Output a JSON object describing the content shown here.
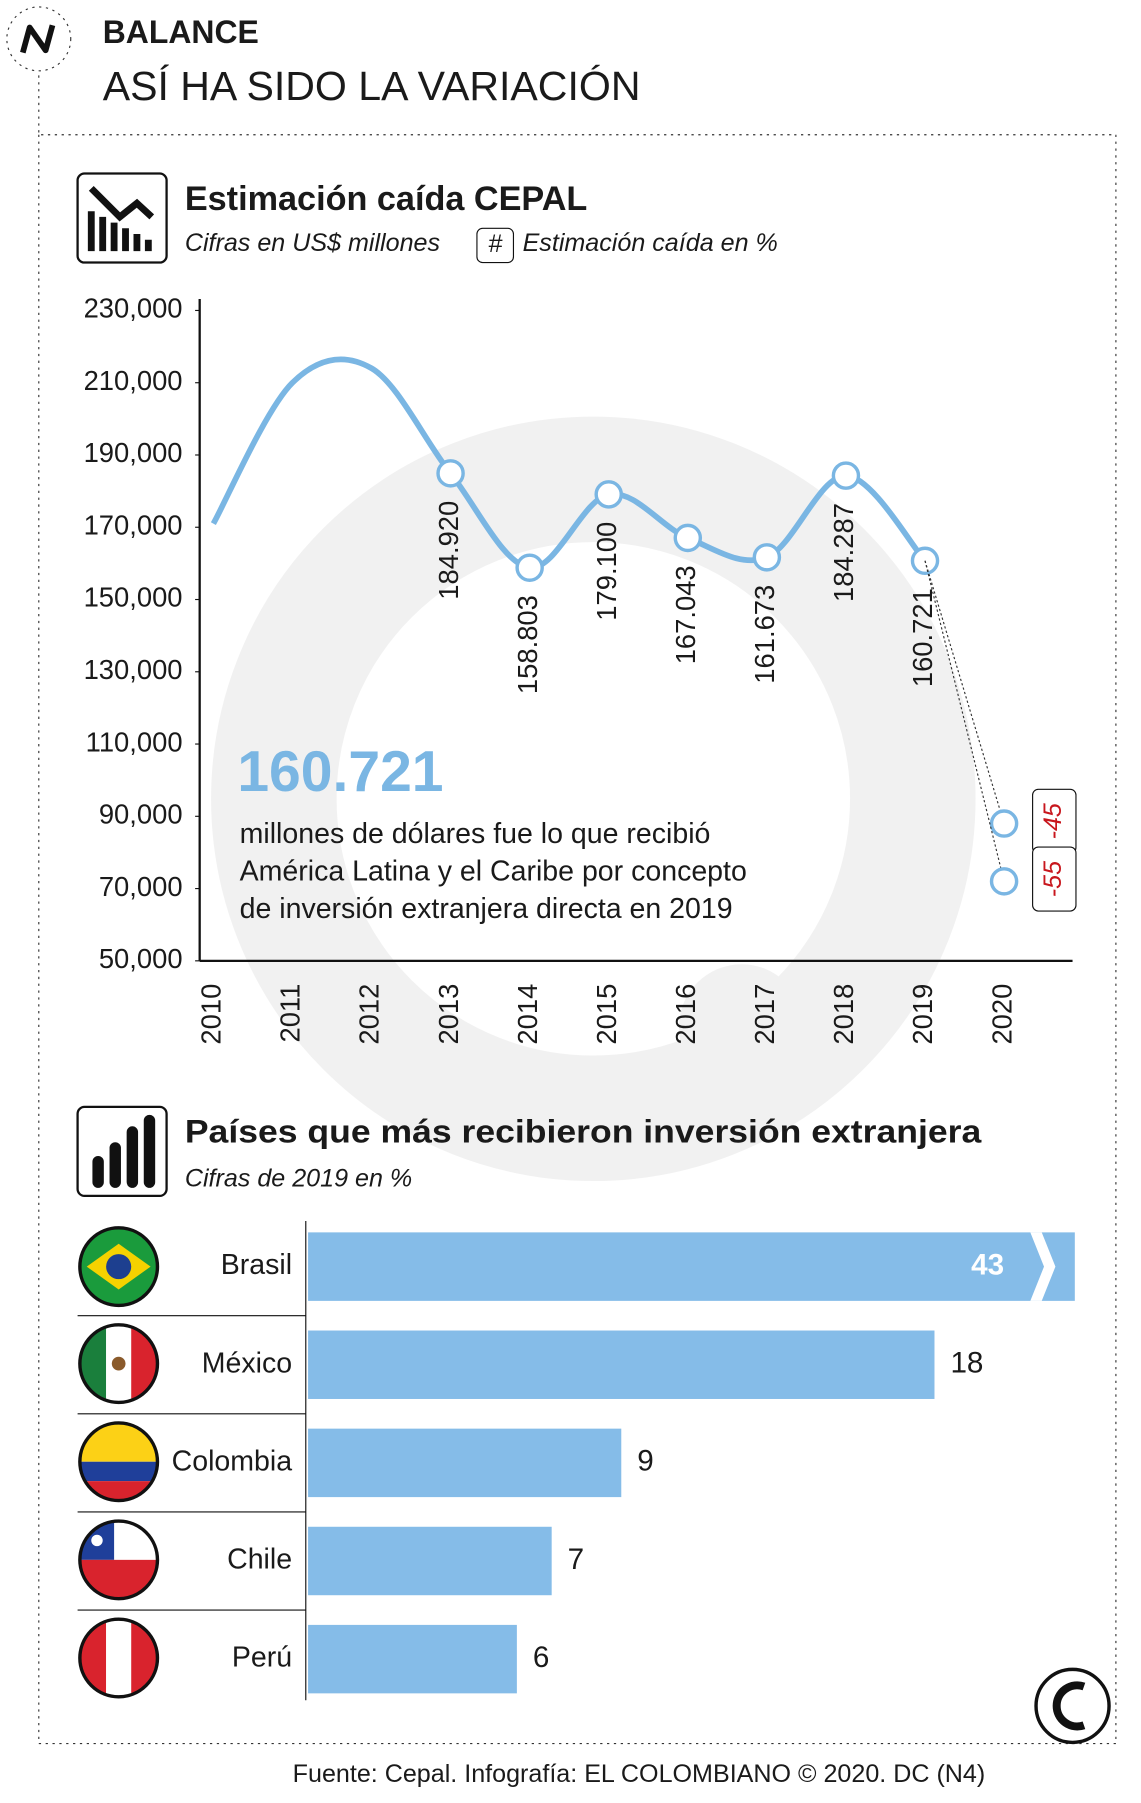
{
  "header": {
    "kicker": "BALANCE",
    "title": "ASÍ HA SIDO LA VARIACIÓN"
  },
  "chart_data": [
    {
      "type": "line",
      "title": "Estimación caída CEPAL",
      "subtitle": "Cifras en US$ millones",
      "legend_symbol": "#",
      "legend_text": "Estimación caída en %",
      "categories": [
        "2010",
        "2011",
        "2012",
        "2013",
        "2014",
        "2015",
        "2016",
        "2017",
        "2018",
        "2019",
        "2020"
      ],
      "values": [
        171000,
        210000,
        214000,
        184920,
        158803,
        179100,
        167043,
        161673,
        184287,
        160721,
        null
      ],
      "value_labels": [
        null,
        null,
        null,
        "184.920",
        "158.803",
        "179.100",
        "167.043",
        "161.673",
        "184.287",
        "160.721",
        null
      ],
      "estimates": [
        {
          "value": 88000,
          "label": "-45"
        },
        {
          "value": 72000,
          "label": "-55"
        }
      ],
      "color": "#7ab6e3",
      "annotation": {
        "value": "160.721",
        "lines": [
          "millones de dólares fue lo que recibió",
          "América Latina y el Caribe por concepto",
          "de inversión extranjera directa en 2019"
        ]
      },
      "ylim": [
        50000,
        230000
      ],
      "yticks": [
        {
          "value": 50000,
          "label": "50,000"
        },
        {
          "value": 70000,
          "label": "70,000"
        },
        {
          "value": 90000,
          "label": "90,000"
        },
        {
          "value": 110000,
          "label": "110,000"
        },
        {
          "value": 130000,
          "label": "130,000"
        },
        {
          "value": 150000,
          "label": "150,000"
        },
        {
          "value": 170000,
          "label": "170,000"
        },
        {
          "value": 190000,
          "label": "190,000"
        },
        {
          "value": 210000,
          "label": "210,000"
        },
        {
          "value": 230000,
          "label": "230,000"
        }
      ]
    },
    {
      "type": "bar",
      "title": "Países que más recibieron inversión extranjera",
      "subtitle": "Cifras de 2019 en %",
      "categories": [
        "Brasil",
        "México",
        "Colombia",
        "Chile",
        "Perú"
      ],
      "values": [
        43,
        18,
        9,
        7,
        6
      ],
      "color": "#85bce8"
    }
  ],
  "footer": "Fuente: Cepal. Infografía: EL COLOMBIANO © 2020. DC (N4)"
}
